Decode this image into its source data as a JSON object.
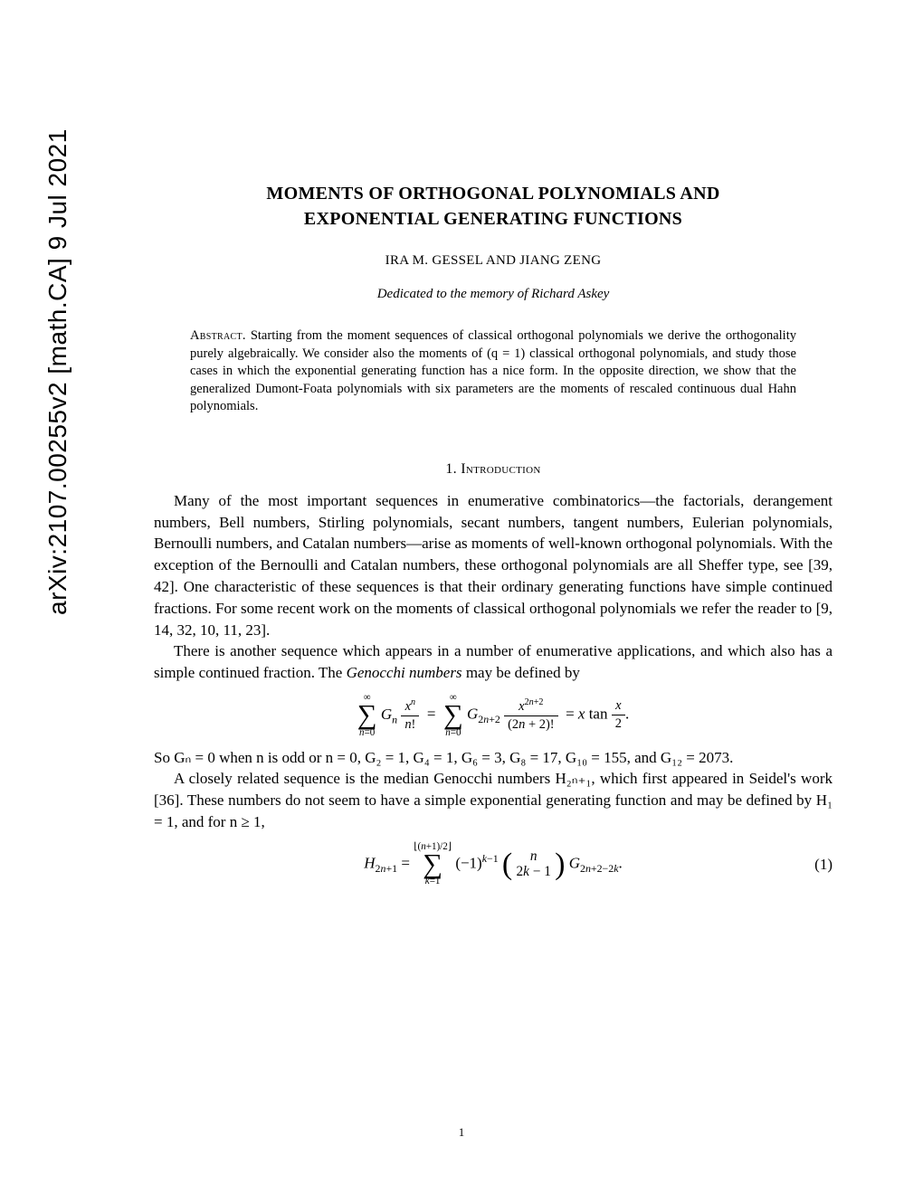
{
  "arxiv": {
    "id": "arXiv:2107.00255v2  [math.CA]  9 Jul 2021"
  },
  "title": {
    "line1": "MOMENTS OF ORTHOGONAL POLYNOMIALS AND",
    "line2": "EXPONENTIAL GENERATING FUNCTIONS"
  },
  "authors": "IRA M. GESSEL AND JIANG ZENG",
  "dedication": "Dedicated to the memory of Richard Askey",
  "abstract": {
    "label": "Abstract.",
    "text": "Starting from the moment sequences of classical orthogonal polynomials we derive the orthogonality purely algebraically. We consider also the moments of (q = 1) classical orthogonal polynomials, and study those cases in which the exponential generating function has a nice form. In the opposite direction, we show that the generalized Dumont-Foata polynomials with six parameters are the moments of rescaled continuous dual Hahn polynomials."
  },
  "section": {
    "number": "1.",
    "title": "Introduction"
  },
  "body": {
    "para1": "Many of the most important sequences in enumerative combinatorics—the factorials, derangement numbers, Bell numbers, Stirling polynomials, secant numbers, tangent numbers, Eulerian polynomials, Bernoulli numbers, and Catalan numbers—arise as moments of well-known orthogonal polynomials. With the exception of the Bernoulli and Catalan numbers, these orthogonal polynomials are all Sheffer type, see [39, 42]. One characteristic of these sequences is that their ordinary generating functions have simple continued fractions. For some recent work on the moments of classical orthogonal polynomials we refer the reader to [9, 14, 32, 10, 11, 23].",
    "para2a": "There is another sequence which appears in a number of enumerative applications, and which also has a simple continued fraction. The ",
    "para2_em": "Genocchi numbers",
    "para2b": " may be defined by",
    "para3": "So Gₙ = 0 when n is odd or n = 0, G₂ = 1, G₄ = 1, G₆ = 3, G₈ = 17, G₁₀ = 155, and G₁₂ = 2073.",
    "para4": "A closely related sequence is the median Genocchi numbers H₂ₙ₊₁, which first appeared in Seidel's work [36]. These numbers do not seem to have a simple exponential generating function and may be defined by H₁ = 1, and for n ≥ 1,"
  },
  "equations": {
    "eq1_number": "(1)"
  },
  "page_number": "1"
}
